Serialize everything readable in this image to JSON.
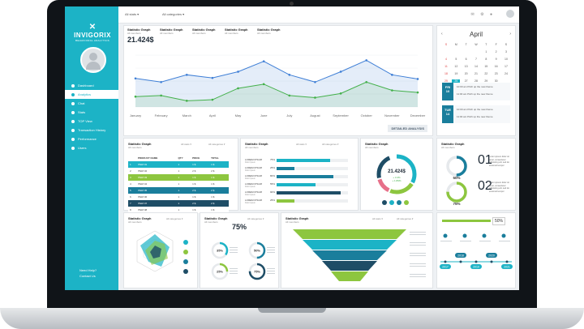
{
  "brand": {
    "name": "INVIGORIX",
    "tagline": "BEHAVIORAL ANALYTICS",
    "mark": "✕"
  },
  "sidebar": {
    "items": [
      {
        "label": "Dashboard"
      },
      {
        "label": "Analytics"
      },
      {
        "label": "Chat"
      },
      {
        "label": "Stats"
      },
      {
        "label": "TOP View"
      },
      {
        "label": "Transaction History"
      },
      {
        "label": "Performance"
      },
      {
        "label": "Users"
      }
    ],
    "active_index": 1,
    "help": "Need Help?",
    "contact": "Contact Us"
  },
  "topbar": {
    "dropdown1": "All stats",
    "dropdown2": "All categories",
    "icons": "✉ ⚙ ●"
  },
  "main_chart": {
    "tabs": [
      {
        "title": "Statistic Graph",
        "sub": "All members"
      },
      {
        "title": "Statistic Graph",
        "sub": "All members"
      },
      {
        "title": "Statistic Graph",
        "sub": "All members"
      },
      {
        "title": "Statistic Graph",
        "sub": "All members"
      },
      {
        "title": "Statistic Graph",
        "sub": "All members"
      }
    ],
    "value": "21.424$",
    "button": "DETAILED ANALYSIS"
  },
  "chart_data": {
    "type": "area",
    "categories": [
      "January",
      "February",
      "March",
      "April",
      "May",
      "June",
      "July",
      "August",
      "September",
      "October",
      "November",
      "December"
    ],
    "series": [
      {
        "values": [
          55,
          48,
          62,
          56,
          68,
          88,
          62,
          48,
          68,
          90,
          62,
          54
        ]
      },
      {
        "values": [
          20,
          22,
          12,
          14,
          36,
          44,
          22,
          18,
          26,
          48,
          32,
          28
        ]
      }
    ],
    "ylim": [
      0,
      100
    ],
    "colors": [
      "#3f7fd6",
      "#43b04a"
    ]
  },
  "table_panel": {
    "title": "Statistic Graph",
    "sub": "All members",
    "dropdown1": "All stats",
    "dropdown2": "All categories",
    "headers": [
      "",
      "PRODUCT NAME",
      "QTY",
      "PRICE",
      "TOTAL"
    ],
    "rows": [
      [
        "1",
        "ITEM 01",
        "1",
        "1 $",
        "1 $"
      ],
      [
        "2",
        "ITEM 02",
        "1",
        "2 $",
        "2 $"
      ],
      [
        "3",
        "ITEM 03",
        "1",
        "1 $",
        "1 $"
      ],
      [
        "4",
        "ITEM 04",
        "1",
        "1 $",
        "1 $"
      ],
      [
        "5",
        "ITEM 05",
        "1",
        "2 $",
        "2 $"
      ],
      [
        "6",
        "ITEM 06",
        "1",
        "1 $",
        "1 $"
      ],
      [
        "7",
        "ITEM 07",
        "1",
        "2 $",
        "2 $"
      ],
      [
        "8",
        "ITEM 08",
        "1",
        "1 $",
        "1 $"
      ]
    ]
  },
  "bars_panel": {
    "title": "Statistic Graph",
    "sub": "All members",
    "dropdown1": "All stats",
    "dropdown2": "All categories",
    "item_label": "LOREM IPSUM",
    "item_sub": "Dolor Ipsum",
    "items": [
      {
        "pct": "75%",
        "value": 75,
        "color": "#1cb3c6"
      },
      {
        "pct": "25%",
        "value": 25,
        "color": "#1a7e9c"
      },
      {
        "pct": "80%",
        "value": 80,
        "color": "#1a7e9c"
      },
      {
        "pct": "55%",
        "value": 55,
        "color": "#1cb3c6"
      },
      {
        "pct": "90%",
        "value": 90,
        "color": "#1e4d66"
      },
      {
        "pct": "25%",
        "value": 25,
        "color": "#8dc63f"
      }
    ]
  },
  "donut_panel": {
    "title": "Statistic Graph",
    "sub": "All members",
    "value": "21.424$",
    "up": "+ 3.4%",
    "down": "+ 1.89%",
    "dots": [
      "#1e4d66",
      "#1cb3c6",
      "#1a7e9c",
      "#8dc63f"
    ]
  },
  "rings_panel": {
    "title": "Statistic Graph",
    "sub": "All members",
    "rings": [
      {
        "num": "01",
        "pct": "50%",
        "value": 50,
        "color": "#1a7e9c"
      },
      {
        "num": "02",
        "pct": "75%",
        "value": 75,
        "color": "#8dc63f"
      }
    ],
    "text": "Lorem ipsum dolor sit amet, consectetur adipiscing elit, sed do eiusmod tempor"
  },
  "calendar": {
    "month": "April",
    "prev": "‹",
    "next": "›",
    "weekdays": [
      "S",
      "M",
      "T",
      "W",
      "T",
      "F",
      "S"
    ],
    "weeks": [
      [
        "",
        "",
        "",
        "",
        "1",
        "2",
        "3"
      ],
      [
        "4",
        "5",
        "6",
        "7",
        "8",
        "9",
        "10"
      ],
      [
        "11",
        "12",
        "13",
        "14",
        "15",
        "16",
        "17"
      ],
      [
        "18",
        "19",
        "20",
        "21",
        "22",
        "23",
        "24"
      ],
      [
        "25",
        "26",
        "27",
        "28",
        "29",
        "30",
        ""
      ]
    ],
    "today": "26",
    "events": [
      {
        "day": "FRI",
        "num": "10",
        "time1": "10:00 am",
        "text1": "Pitch up the new theme",
        "time2": "11:00 am",
        "text2": "Pitch up the new theme"
      },
      {
        "day": "TUE",
        "num": "14",
        "time1": "10:00 am",
        "text1": "Pitch up the new theme",
        "time2": "11:00 am",
        "text2": "Pitch up the new theme"
      }
    ]
  },
  "radar_panel": {
    "title": "Statistic Graph",
    "sub": "All members",
    "dropdown": "All categories"
  },
  "circles_panel": {
    "title": "Statistic Graph",
    "sub": "All members",
    "dropdown": "All categories",
    "value": "75%",
    "circles": [
      {
        "pct": "35%",
        "value": 35
      },
      {
        "pct": "50%",
        "value": 50
      },
      {
        "pct": "25%",
        "value": 25
      },
      {
        "pct": "75%",
        "value": 75
      }
    ]
  },
  "funnel_panel": {
    "title": "Statistic Graph",
    "sub": "All members",
    "dropdown1": "All stats",
    "dropdown2": "All categories",
    "colors": [
      "#8dc63f",
      "#1cb3c6",
      "#1a7e9c",
      "#1e4d66",
      "#8dc63f"
    ]
  },
  "timeline_panel": {
    "pct": "50%",
    "years": [
      "2017",
      "2018",
      "2019",
      "2020",
      "2021"
    ]
  }
}
